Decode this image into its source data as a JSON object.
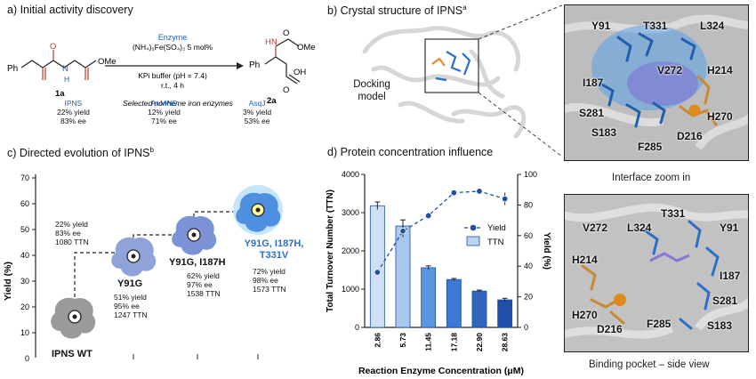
{
  "panel_a": {
    "title": "a) Initial activity discovery",
    "substrate_label": "1a",
    "product_label": "2a",
    "substrate_atoms": {
      "ph": "Ph",
      "o": "O",
      "h": "H",
      "ome": "OMe",
      "n": "N"
    },
    "product_atoms": {
      "hn": "HN",
      "ome": "OMe",
      "ph": "Ph",
      "oh": "OH",
      "o": "O"
    },
    "conditions": {
      "enzyme": "Enzyme",
      "iron": "(NH₄)₂Fe(SO₄)₂ 5 mol%",
      "buffer": "KPi buffer (pH = 7.4)",
      "time": "r.t., 4 h",
      "note": "Selected nonheme iron enzymes"
    },
    "enzymes": [
      {
        "name": "IPNS",
        "yield": "22% yield",
        "ee": "83% ee"
      },
      {
        "name": "AoMHS",
        "yield": "12% yield",
        "ee": "71% ee"
      },
      {
        "name": "AsqJ",
        "yield": "3% yield",
        "ee": "53% ee"
      }
    ]
  },
  "panel_b": {
    "title": "b) Crystal structure of IPNS",
    "title_sup": "a",
    "model_label": "Docking model",
    "zoom1_caption": "Interface zoom in",
    "zoom2_caption": "Binding pocket – side view",
    "zoom1_residues": [
      "Y91",
      "T331",
      "L324",
      "V272",
      "H214",
      "I187",
      "S281",
      "H270",
      "S183",
      "D216",
      "F285"
    ],
    "zoom2_residues": [
      "T331",
      "V272",
      "L324",
      "Y91",
      "H214",
      "I187",
      "S281",
      "H270",
      "D216",
      "F285",
      "S183"
    ]
  },
  "panel_c": {
    "title": "c) Directed evolution of IPNS",
    "title_sup": "b",
    "ylabel": "Yield (%)",
    "yticks": [
      "70",
      "60",
      "50",
      "40",
      "30",
      "20",
      "10",
      "0"
    ],
    "variants": [
      {
        "name": "IPNS WT",
        "stats": [
          "22% yield",
          "83% ee",
          "1080 TTN"
        ]
      },
      {
        "name": "Y91G",
        "stats": [
          "51% yield",
          "95% ee",
          "1247 TTN"
        ]
      },
      {
        "name": "Y91G, I187H",
        "stats": [
          "62% yield",
          "97% ee",
          "1538 TTN"
        ]
      },
      {
        "name": "Y91G, I187H, T331V",
        "stats": [
          "72% yield",
          "98% ee",
          "1573 TTN"
        ]
      }
    ]
  },
  "panel_d": {
    "title": "d) Protein concentration influence"
  },
  "chart_data": {
    "type": "bar",
    "title": "Protein concentration influence",
    "xlabel": "Reaction Enzyme Concentration (μM)",
    "ylabel": "Total Turnover Number (TTN)",
    "y2label": "Yield (%)",
    "categories": [
      "2.86",
      "5.73",
      "11.45",
      "17.18",
      "22.90",
      "28.63"
    ],
    "ylim": [
      0,
      4000
    ],
    "y2lim": [
      0,
      100
    ],
    "yticks": [
      0,
      1000,
      2000,
      3000,
      4000
    ],
    "y2ticks": [
      0,
      20,
      40,
      60,
      80,
      100
    ],
    "legend": "top-right",
    "series": [
      {
        "name": "TTN",
        "kind": "bar",
        "axis": "left",
        "values": [
          3180,
          2650,
          1560,
          1250,
          950,
          720
        ],
        "errors": [
          100,
          160,
          50,
          30,
          25,
          40
        ],
        "colors": [
          "#cfe0f5",
          "#a9c8ee",
          "#5b95df",
          "#3b79d3",
          "#2f65bf",
          "#1f4fa6"
        ]
      },
      {
        "name": "Yield",
        "kind": "line",
        "axis": "right",
        "values": [
          36,
          63,
          73,
          88,
          89,
          84
        ],
        "errors": [
          0,
          4,
          1,
          1,
          1,
          4
        ],
        "color": "#1f4fa6"
      }
    ]
  }
}
